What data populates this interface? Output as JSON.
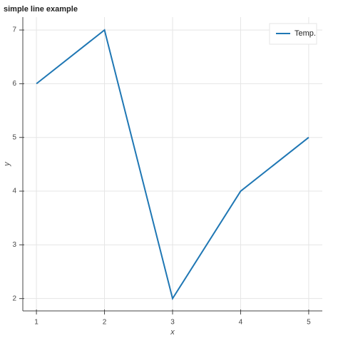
{
  "chart_data": {
    "type": "line",
    "title": "simple line example",
    "x_label": "x",
    "y_label": "y",
    "x": [
      1,
      2,
      3,
      4,
      5
    ],
    "series": [
      {
        "name": "Temp.",
        "color": "#1f77b4",
        "values": [
          6,
          7,
          2,
          4,
          5
        ]
      }
    ],
    "xlim": [
      0.8,
      5.2
    ],
    "ylim": [
      1.77,
      7.24
    ],
    "xticks": [
      1,
      2,
      3,
      4,
      5
    ],
    "yticks": [
      2,
      3,
      4,
      5,
      6,
      7
    ],
    "grid": true,
    "legend": "top-right"
  }
}
